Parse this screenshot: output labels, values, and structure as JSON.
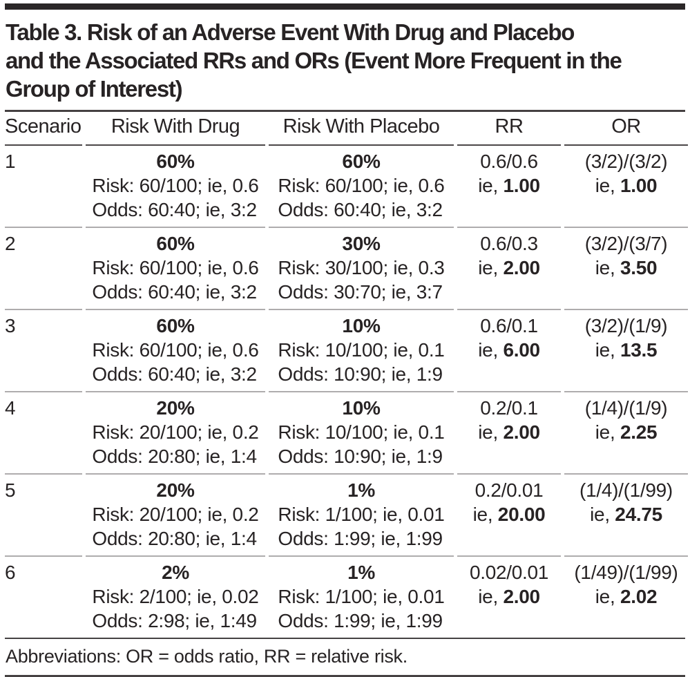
{
  "header": {
    "title_lines": [
      "Table 3. Risk of an Adverse Event With Drug and Placebo",
      "and the Associated RRs and ORs (Event More Frequent in the",
      "Group of Interest)"
    ]
  },
  "labels": {
    "ie": "ie,"
  },
  "table": {
    "columns": {
      "scenario": "Scenario",
      "drug": "Risk With Drug",
      "placebo": "Risk With Placebo",
      "rr": "RR",
      "or": "OR"
    },
    "rows": [
      {
        "scenario": "1",
        "drug": {
          "pct": "60%",
          "risk": "Risk: 60/100; ie, 0.6",
          "odds": "Odds: 60:40; ie, 3:2"
        },
        "placebo": {
          "pct": "60%",
          "risk": "Risk: 60/100; ie, 0.6",
          "odds": "Odds: 60:40; ie, 3:2"
        },
        "rr": {
          "calc": "0.6/0.6",
          "value": "1.00"
        },
        "or": {
          "calc": "(3/2)/(3/2)",
          "value": "1.00"
        }
      },
      {
        "scenario": "2",
        "drug": {
          "pct": "60%",
          "risk": "Risk: 60/100; ie, 0.6",
          "odds": "Odds: 60:40; ie, 3:2"
        },
        "placebo": {
          "pct": "30%",
          "risk": "Risk: 30/100; ie, 0.3",
          "odds": "Odds: 30:70; ie, 3:7"
        },
        "rr": {
          "calc": "0.6/0.3",
          "value": "2.00"
        },
        "or": {
          "calc": "(3/2)/(3/7)",
          "value": "3.50"
        }
      },
      {
        "scenario": "3",
        "drug": {
          "pct": "60%",
          "risk": "Risk: 60/100; ie, 0.6",
          "odds": "Odds: 60:40; ie, 3:2"
        },
        "placebo": {
          "pct": "10%",
          "risk": "Risk: 10/100; ie, 0.1",
          "odds": "Odds: 10:90; ie, 1:9"
        },
        "rr": {
          "calc": "0.6/0.1",
          "value": "6.00"
        },
        "or": {
          "calc": "(3/2)/(1/9)",
          "value": "13.5"
        }
      },
      {
        "scenario": "4",
        "drug": {
          "pct": "20%",
          "risk": "Risk: 20/100; ie, 0.2",
          "odds": "Odds: 20:80; ie, 1:4"
        },
        "placebo": {
          "pct": "10%",
          "risk": "Risk: 10/100; ie, 0.1",
          "odds": "Odds: 10:90; ie, 1:9"
        },
        "rr": {
          "calc": "0.2/0.1",
          "value": "2.00"
        },
        "or": {
          "calc": "(1/4)/(1/9)",
          "value": "2.25"
        }
      },
      {
        "scenario": "5",
        "drug": {
          "pct": "20%",
          "risk": "Risk: 20/100; ie, 0.2",
          "odds": "Odds: 20:80; ie, 1:4"
        },
        "placebo": {
          "pct": "1%",
          "risk": "Risk: 1/100; ie, 0.01",
          "odds": "Odds: 1:99; ie, 1:99"
        },
        "rr": {
          "calc": "0.2/0.01",
          "value": "20.00"
        },
        "or": {
          "calc": "(1/4)/(1/99)",
          "value": "24.75"
        }
      },
      {
        "scenario": "6",
        "drug": {
          "pct": "2%",
          "risk": "Risk: 2/100; ie, 0.02",
          "odds": "Odds: 2:98; ie, 1:49"
        },
        "placebo": {
          "pct": "1%",
          "risk": "Risk: 1/100; ie, 0.01",
          "odds": "Odds: 1:99; ie, 1:99"
        },
        "rr": {
          "calc": "0.02/0.01",
          "value": "2.00"
        },
        "or": {
          "calc": "(1/49)/(1/99)",
          "value": "2.02"
        }
      }
    ]
  },
  "footnote": "Abbreviations: OR = odds ratio, RR = relative risk."
}
